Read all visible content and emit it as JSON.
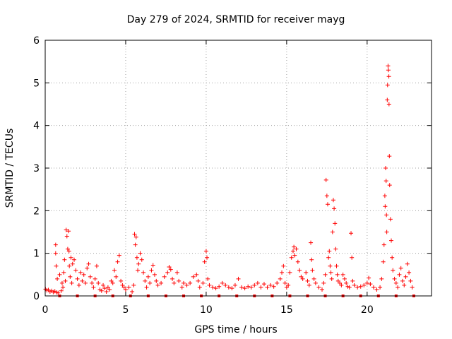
{
  "chart_data": {
    "type": "scatter",
    "title": "Day 279 of 2024, SRMTID for receiver mayg",
    "xlabel": "GPS time / hours",
    "ylabel": "SRMTID / TECUs",
    "xlim": [
      0,
      24
    ],
    "ylim": [
      0,
      6
    ],
    "xticks": [
      0,
      5,
      10,
      15,
      20
    ],
    "xtick_labels": [
      "0",
      "5",
      "10",
      "15",
      "20"
    ],
    "yticks": [
      0,
      1,
      2,
      3,
      4,
      5,
      6
    ],
    "ytick_labels": [
      "0",
      "1",
      "2",
      "3",
      "4",
      "5",
      "6"
    ],
    "grid": true,
    "marker": "+",
    "color": "#ff0000",
    "series": [
      {
        "name": "SRMTID",
        "points": [
          [
            0.02,
            0.16
          ],
          [
            0.1,
            0.13
          ],
          [
            0.2,
            0.14
          ],
          [
            0.3,
            0.1
          ],
          [
            0.4,
            0.12
          ],
          [
            0.5,
            0.09
          ],
          [
            0.6,
            0.11
          ],
          [
            0.65,
            1.2
          ],
          [
            0.65,
            1.0
          ],
          [
            0.68,
            0.7
          ],
          [
            0.7,
            0.08
          ],
          [
            0.75,
            0.4
          ],
          [
            0.8,
            0.07
          ],
          [
            0.9,
            0.5
          ],
          [
            1.0,
            0.12
          ],
          [
            1.05,
            0.3
          ],
          [
            1.1,
            0.2
          ],
          [
            1.15,
            0.55
          ],
          [
            1.2,
            0.85
          ],
          [
            1.25,
            0.35
          ],
          [
            1.3,
            1.55
          ],
          [
            1.35,
            1.4
          ],
          [
            1.4,
            1.1
          ],
          [
            1.45,
            1.52
          ],
          [
            1.48,
            1.05
          ],
          [
            1.5,
            0.7
          ],
          [
            1.55,
            0.45
          ],
          [
            1.6,
            0.9
          ],
          [
            1.65,
            0.3
          ],
          [
            1.7,
            0.75
          ],
          [
            1.8,
            0.85
          ],
          [
            1.9,
            0.6
          ],
          [
            2.0,
            0.4
          ],
          [
            2.1,
            0.25
          ],
          [
            2.2,
            0.55
          ],
          [
            2.3,
            0.35
          ],
          [
            2.4,
            0.5
          ],
          [
            2.5,
            0.3
          ],
          [
            2.6,
            0.65
          ],
          [
            2.7,
            0.75
          ],
          [
            2.8,
            0.45
          ],
          [
            2.9,
            0.3
          ],
          [
            3.0,
            0.2
          ],
          [
            3.1,
            0.4
          ],
          [
            3.2,
            0.7
          ],
          [
            3.3,
            0.3
          ],
          [
            3.4,
            0.15
          ],
          [
            3.5,
            0.12
          ],
          [
            3.6,
            0.25
          ],
          [
            3.7,
            0.18
          ],
          [
            3.8,
            0.1
          ],
          [
            3.9,
            0.2
          ],
          [
            4.0,
            0.15
          ],
          [
            4.1,
            0.35
          ],
          [
            4.2,
            0.3
          ],
          [
            4.3,
            0.6
          ],
          [
            4.4,
            0.45
          ],
          [
            4.5,
            0.8
          ],
          [
            4.6,
            0.95
          ],
          [
            4.7,
            0.35
          ],
          [
            4.8,
            0.25
          ],
          [
            4.9,
            0.2
          ],
          [
            5.0,
            0.15
          ],
          [
            5.2,
            0.2
          ],
          [
            5.4,
            0.1
          ],
          [
            5.5,
            0.25
          ],
          [
            5.55,
            1.45
          ],
          [
            5.6,
            1.2
          ],
          [
            5.65,
            1.38
          ],
          [
            5.7,
            0.9
          ],
          [
            5.75,
            0.6
          ],
          [
            5.8,
            0.75
          ],
          [
            5.9,
            1.0
          ],
          [
            6.0,
            0.85
          ],
          [
            6.1,
            0.55
          ],
          [
            6.2,
            0.35
          ],
          [
            6.3,
            0.2
          ],
          [
            6.4,
            0.45
          ],
          [
            6.5,
            0.3
          ],
          [
            6.6,
            0.6
          ],
          [
            6.7,
            0.72
          ],
          [
            6.8,
            0.5
          ],
          [
            6.9,
            0.35
          ],
          [
            7.0,
            0.25
          ],
          [
            7.2,
            0.3
          ],
          [
            7.4,
            0.45
          ],
          [
            7.6,
            0.55
          ],
          [
            7.7,
            0.68
          ],
          [
            7.8,
            0.62
          ],
          [
            7.9,
            0.4
          ],
          [
            8.0,
            0.3
          ],
          [
            8.2,
            0.55
          ],
          [
            8.3,
            0.35
          ],
          [
            8.5,
            0.2
          ],
          [
            8.6,
            0.3
          ],
          [
            8.8,
            0.25
          ],
          [
            9.0,
            0.3
          ],
          [
            9.2,
            0.45
          ],
          [
            9.4,
            0.5
          ],
          [
            9.5,
            0.35
          ],
          [
            9.6,
            0.2
          ],
          [
            9.8,
            0.3
          ],
          [
            9.9,
            0.8
          ],
          [
            10.0,
            1.05
          ],
          [
            10.05,
            0.9
          ],
          [
            10.1,
            0.4
          ],
          [
            10.2,
            0.25
          ],
          [
            10.4,
            0.2
          ],
          [
            10.6,
            0.18
          ],
          [
            10.8,
            0.22
          ],
          [
            11.0,
            0.3
          ],
          [
            11.2,
            0.25
          ],
          [
            11.4,
            0.2
          ],
          [
            11.6,
            0.18
          ],
          [
            11.8,
            0.25
          ],
          [
            12.0,
            0.4
          ],
          [
            12.2,
            0.2
          ],
          [
            12.4,
            0.18
          ],
          [
            12.6,
            0.22
          ],
          [
            12.8,
            0.2
          ],
          [
            13.0,
            0.25
          ],
          [
            13.2,
            0.3
          ],
          [
            13.4,
            0.2
          ],
          [
            13.6,
            0.28
          ],
          [
            13.8,
            0.2
          ],
          [
            14.0,
            0.25
          ],
          [
            14.2,
            0.22
          ],
          [
            14.4,
            0.3
          ],
          [
            14.6,
            0.4
          ],
          [
            14.7,
            0.55
          ],
          [
            14.8,
            0.7
          ],
          [
            14.9,
            0.3
          ],
          [
            15.0,
            0.2
          ],
          [
            15.1,
            0.25
          ],
          [
            15.2,
            0.55
          ],
          [
            15.3,
            0.9
          ],
          [
            15.4,
            1.05
          ],
          [
            15.45,
            1.15
          ],
          [
            15.5,
            0.95
          ],
          [
            15.6,
            1.1
          ],
          [
            15.7,
            0.8
          ],
          [
            15.8,
            0.6
          ],
          [
            15.9,
            0.45
          ],
          [
            16.0,
            0.4
          ],
          [
            16.2,
            0.55
          ],
          [
            16.3,
            0.35
          ],
          [
            16.4,
            0.25
          ],
          [
            16.5,
            1.25
          ],
          [
            16.55,
            0.85
          ],
          [
            16.6,
            0.6
          ],
          [
            16.7,
            0.4
          ],
          [
            16.8,
            0.3
          ],
          [
            17.0,
            0.2
          ],
          [
            17.2,
            0.15
          ],
          [
            17.3,
            0.3
          ],
          [
            17.4,
            0.5
          ],
          [
            17.45,
            2.72
          ],
          [
            17.5,
            2.35
          ],
          [
            17.55,
            2.15
          ],
          [
            17.6,
            0.9
          ],
          [
            17.65,
            1.05
          ],
          [
            17.7,
            0.7
          ],
          [
            17.75,
            0.55
          ],
          [
            17.8,
            0.4
          ],
          [
            17.85,
            1.5
          ],
          [
            17.9,
            2.25
          ],
          [
            17.95,
            2.05
          ],
          [
            18.0,
            1.7
          ],
          [
            18.05,
            1.1
          ],
          [
            18.1,
            0.7
          ],
          [
            18.15,
            0.5
          ],
          [
            18.2,
            0.35
          ],
          [
            18.3,
            0.3
          ],
          [
            18.4,
            0.25
          ],
          [
            18.5,
            0.5
          ],
          [
            18.6,
            0.4
          ],
          [
            18.7,
            0.3
          ],
          [
            18.8,
            0.22
          ],
          [
            18.9,
            0.2
          ],
          [
            19.0,
            1.47
          ],
          [
            19.05,
            0.9
          ],
          [
            19.1,
            0.35
          ],
          [
            19.2,
            0.25
          ],
          [
            19.4,
            0.2
          ],
          [
            19.6,
            0.22
          ],
          [
            19.8,
            0.25
          ],
          [
            20.0,
            0.3
          ],
          [
            20.1,
            0.42
          ],
          [
            20.2,
            0.28
          ],
          [
            20.4,
            0.2
          ],
          [
            20.6,
            0.15
          ],
          [
            20.8,
            0.2
          ],
          [
            20.9,
            0.4
          ],
          [
            21.0,
            0.8
          ],
          [
            21.05,
            1.2
          ],
          [
            21.1,
            2.35
          ],
          [
            21.12,
            2.1
          ],
          [
            21.15,
            3.0
          ],
          [
            21.18,
            2.7
          ],
          [
            21.2,
            1.9
          ],
          [
            21.22,
            1.5
          ],
          [
            21.25,
            4.6
          ],
          [
            21.27,
            4.95
          ],
          [
            21.3,
            5.4
          ],
          [
            21.32,
            5.3
          ],
          [
            21.35,
            5.15
          ],
          [
            21.36,
            4.5
          ],
          [
            21.38,
            3.28
          ],
          [
            21.4,
            2.6
          ],
          [
            21.45,
            1.8
          ],
          [
            21.5,
            1.3
          ],
          [
            21.55,
            0.9
          ],
          [
            21.6,
            0.6
          ],
          [
            21.7,
            0.4
          ],
          [
            21.8,
            0.3
          ],
          [
            21.9,
            0.2
          ],
          [
            22.0,
            0.5
          ],
          [
            22.1,
            0.65
          ],
          [
            22.2,
            0.35
          ],
          [
            22.3,
            0.25
          ],
          [
            22.4,
            0.45
          ],
          [
            22.5,
            0.75
          ],
          [
            22.6,
            0.55
          ],
          [
            22.7,
            0.35
          ],
          [
            22.8,
            0.2
          ]
        ]
      }
    ]
  }
}
